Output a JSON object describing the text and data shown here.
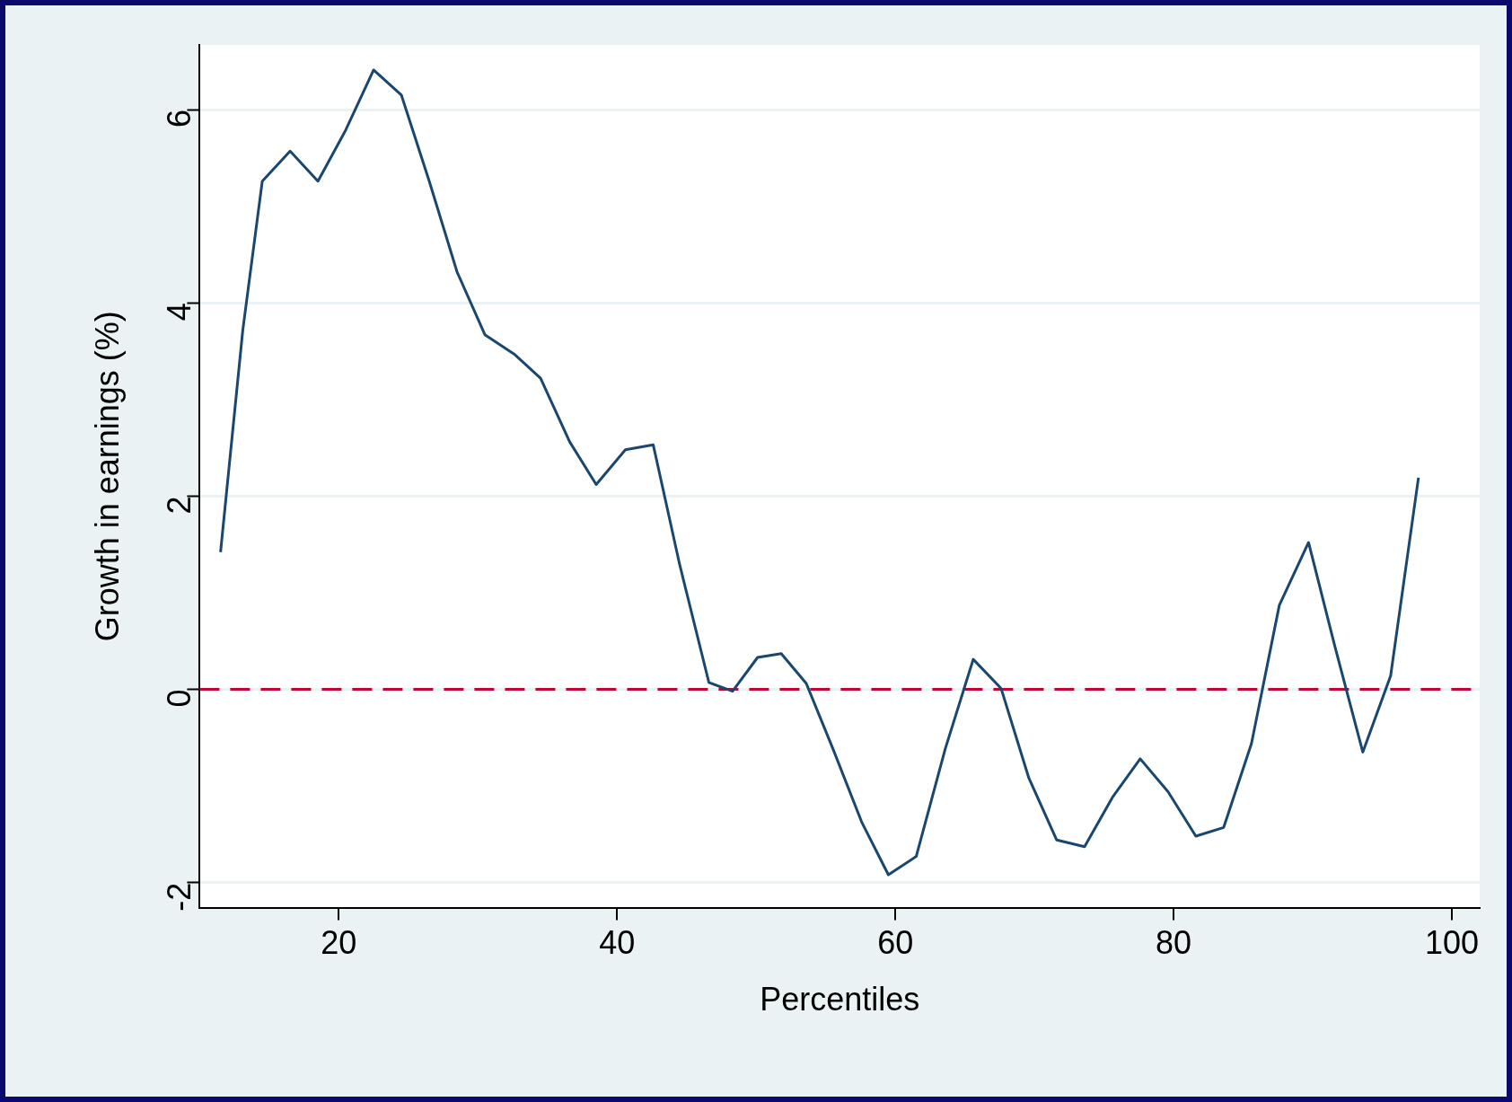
{
  "chart_data": {
    "type": "line",
    "xlabel": "Percentiles",
    "ylabel": "Growth in earnings (%)",
    "x": [
      11.5,
      13.1,
      14.5,
      16.5,
      18.5,
      20.5,
      22.5,
      24.5,
      26.5,
      28.5,
      30.5,
      32.6,
      34.5,
      36.6,
      38.5,
      40.6,
      42.6,
      44.5,
      46.6,
      48.3,
      50.1,
      51.8,
      53.6,
      55.5,
      57.6,
      59.5,
      61.5,
      63.6,
      65.6,
      67.6,
      69.6,
      71.6,
      73.6,
      75.6,
      77.6,
      79.6,
      81.6,
      83.6,
      85.6,
      87.6,
      89.7,
      91.6,
      93.6,
      95.6,
      97.6
    ],
    "series": [
      {
        "color": "#1a476f",
        "values": [
          1.42,
          3.72,
          5.26,
          5.57,
          5.26,
          5.79,
          6.41,
          6.15,
          5.26,
          4.32,
          3.67,
          3.47,
          3.22,
          2.56,
          2.12,
          2.48,
          2.53,
          1.29,
          0.07,
          -0.02,
          0.33,
          0.37,
          0.06,
          -0.61,
          -1.38,
          -1.92,
          -1.73,
          -0.61,
          0.31,
          0.01,
          -0.92,
          -1.56,
          -1.63,
          -1.12,
          -0.72,
          -1.06,
          -1.52,
          -1.43,
          -0.56,
          0.87,
          1.52,
          0.44,
          -0.65,
          0.14,
          2.19
        ]
      }
    ],
    "xlim": [
      10,
      102
    ],
    "xticks": [
      20,
      40,
      60,
      80,
      100
    ],
    "ylim": [
      -2.26,
      6.67
    ],
    "yticks": [
      -2,
      0,
      2,
      4,
      6
    ],
    "ref_lines": [
      {
        "axis": "y",
        "value": 0,
        "color": "#c10534",
        "line_style": "dashed"
      }
    ],
    "grid": "y",
    "legend": false,
    "marker": "none",
    "line_style": "solid"
  }
}
